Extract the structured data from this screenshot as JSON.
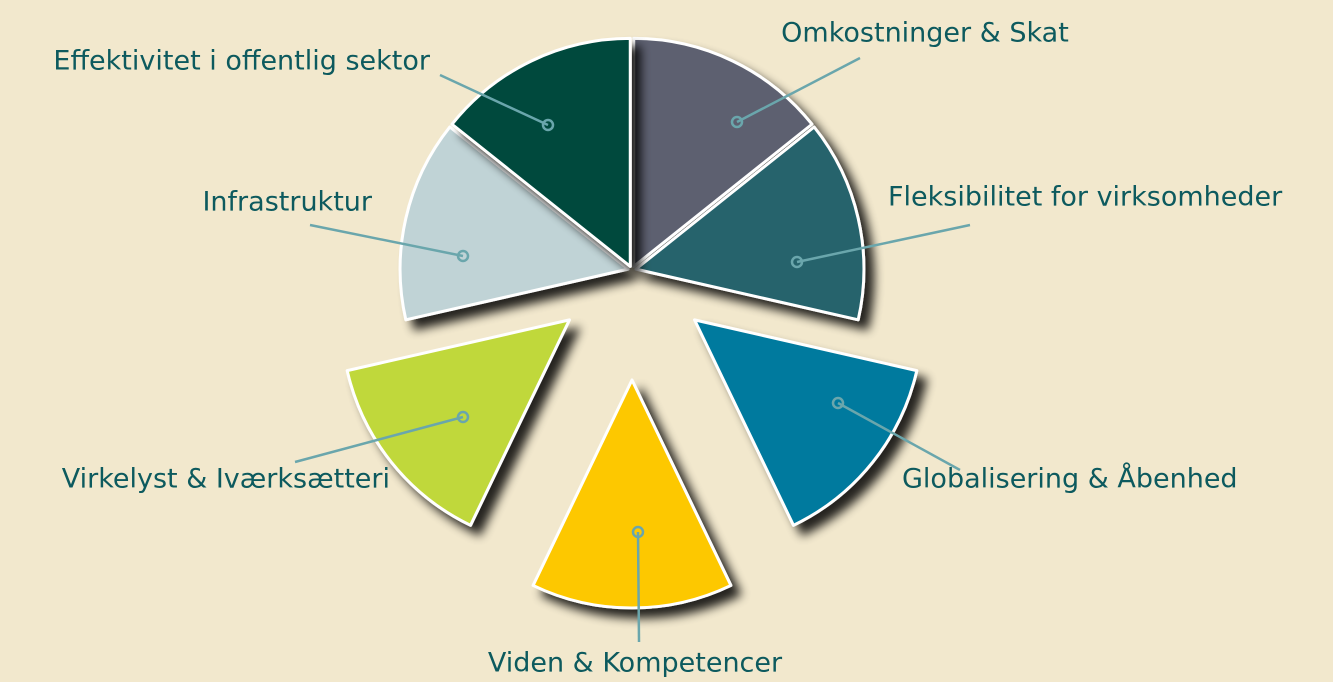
{
  "nodes": [
    {
      "label": "Omkostninger & Skat",
      "color": "#5d6170"
    },
    {
      "label": "Fleksibilitet for virksomheder",
      "color": "#25636c"
    },
    {
      "label": "Globalisering & Åbenhed",
      "color": "#007a9e"
    },
    {
      "label": "Viden & Kompetencer",
      "color": "#fdc800"
    },
    {
      "label": "Virkelyst & Iværksætteri",
      "color": "#c0d83a"
    },
    {
      "label": "Infrastruktur",
      "color": "#c0d3d6"
    },
    {
      "label": "Effektivitet i offentlig sektor",
      "color": "#00493e"
    }
  ]
}
